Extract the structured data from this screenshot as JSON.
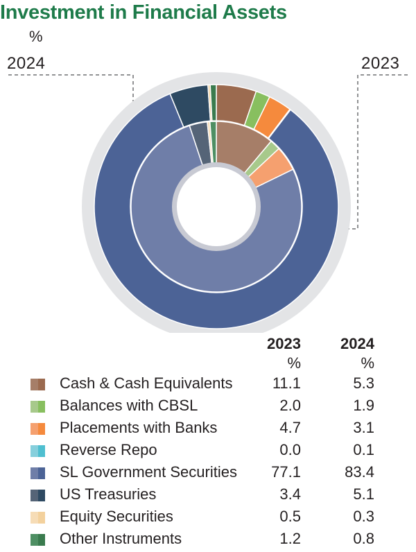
{
  "title": "Investment in Financial Assets",
  "unit": "%",
  "year_labels": {
    "outer": "2024",
    "inner": "2023"
  },
  "table": {
    "col_2023": "2023",
    "col_2024": "2024",
    "pct_2023": "%",
    "pct_2024": "%"
  },
  "chart_data": {
    "type": "pie",
    "subtype": "nested-donut",
    "inner_ring": "2023",
    "outer_ring": "2024",
    "categories": [
      "Cash & Cash Equivalents",
      "Balances with CBSL",
      "Placements with Banks",
      "Reverse Repo",
      "SL Government Securities",
      "US Treasuries",
      "Equity Securities",
      "Other Instruments"
    ],
    "series": [
      {
        "name": "2023",
        "values": [
          11.1,
          2.0,
          4.7,
          0.0,
          77.1,
          3.4,
          0.5,
          1.2
        ]
      },
      {
        "name": "2024",
        "values": [
          5.3,
          1.9,
          3.1,
          0.1,
          83.4,
          5.1,
          0.3,
          0.8
        ]
      }
    ],
    "colors_2023": [
      "#a67e68",
      "#a7c98b",
      "#f5a06f",
      "#86cfdc",
      "#6f7ea8",
      "#556477",
      "#f6dcb6",
      "#4e8f63"
    ],
    "colors_2024": [
      "#9b6a4f",
      "#88bf5f",
      "#f58a3d",
      "#4fbfd0",
      "#4c6396",
      "#2e4a62",
      "#f3d19d",
      "#3a7b4e"
    ]
  },
  "legend": [
    {
      "label": "Cash & Cash Equivalents",
      "v2023": "11.1",
      "v2024": "5.3"
    },
    {
      "label": "Balances with CBSL",
      "v2023": "2.0",
      "v2024": "1.9"
    },
    {
      "label": "Placements with Banks",
      "v2023": "4.7",
      "v2024": "3.1"
    },
    {
      "label": "Reverse Repo",
      "v2023": "0.0",
      "v2024": "0.1"
    },
    {
      "label": "SL Government Securities",
      "v2023": "77.1",
      "v2024": "83.4"
    },
    {
      "label": "US Treasuries",
      "v2023": "3.4",
      "v2024": "5.1"
    },
    {
      "label": "Equity Securities",
      "v2023": "0.5",
      "v2024": "0.3"
    },
    {
      "label": "Other Instruments",
      "v2023": "1.2",
      "v2024": "0.8"
    }
  ]
}
